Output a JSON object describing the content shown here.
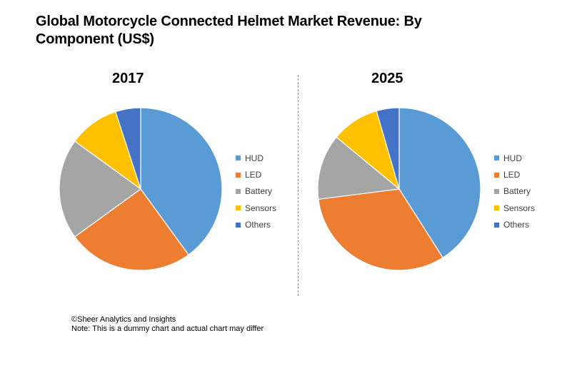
{
  "title": "Global Motorcycle Connected Helmet Market Revenue: By Component (US$)",
  "footer": {
    "copyright": "©Sheer Analytics and Insights",
    "note": "Note: This is a dummy chart and actual chart may differ"
  },
  "chart_data": [
    {
      "type": "pie",
      "title": "2017",
      "categories": [
        "HUD",
        "LED",
        "Battery",
        "Sensors",
        "Others"
      ],
      "values": [
        40,
        25,
        20,
        10,
        5
      ],
      "colors": [
        "#5b9bd5",
        "#ed7d31",
        "#a5a5a5",
        "#ffc000",
        "#4472c4"
      ],
      "legend": "right"
    },
    {
      "type": "pie",
      "title": "2025",
      "categories": [
        "HUD",
        "LED",
        "Battery",
        "Sensors",
        "Others"
      ],
      "values": [
        41,
        32,
        13,
        9.5,
        4.5
      ],
      "colors": [
        "#5b9bd5",
        "#ed7d31",
        "#a5a5a5",
        "#ffc000",
        "#4472c4"
      ],
      "legend": "right"
    }
  ]
}
